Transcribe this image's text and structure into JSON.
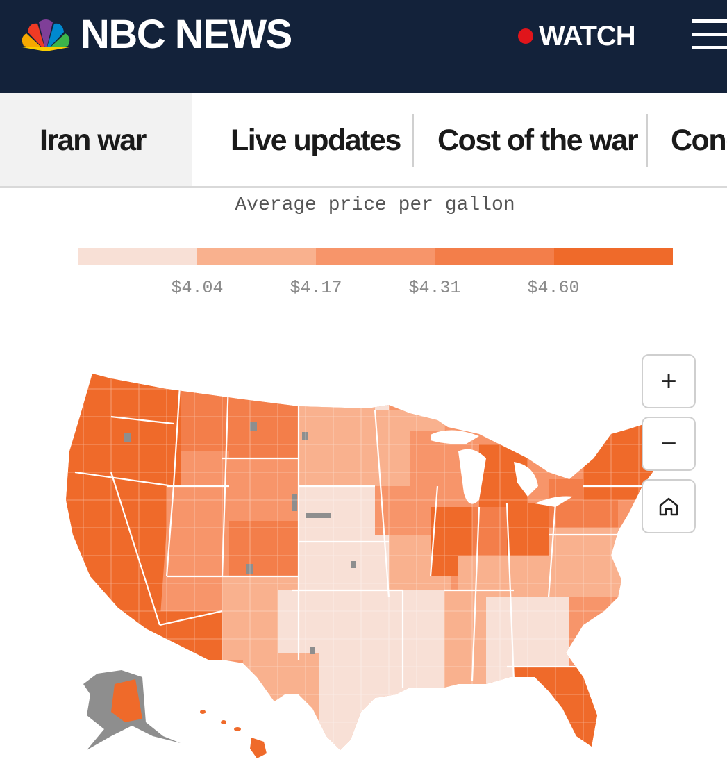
{
  "header": {
    "brand": "NBC NEWS",
    "watch_label": "WATCH",
    "peacock_icon": "nbc-peacock-logo",
    "menu_icon": "hamburger-menu-icon"
  },
  "nav": {
    "items": [
      {
        "label": "Iran war",
        "active": true
      },
      {
        "label": "Live updates",
        "active": false
      },
      {
        "label": "Cost of the war",
        "active": false
      },
      {
        "label": "Cong",
        "active": false
      }
    ]
  },
  "legend": {
    "title": "Average price per gallon",
    "colors": [
      "#f8e0d6",
      "#f9b18e",
      "#f7956a",
      "#f37e4a",
      "#ef6a2a"
    ],
    "ticks": [
      "$4.04",
      "$4.17",
      "$4.31",
      "$4.60"
    ]
  },
  "map": {
    "region": "United States counties",
    "no_data_color": "#8e8e8e",
    "controls": {
      "zoom_in": "+",
      "zoom_out": "−",
      "home_icon": "home-icon"
    }
  }
}
